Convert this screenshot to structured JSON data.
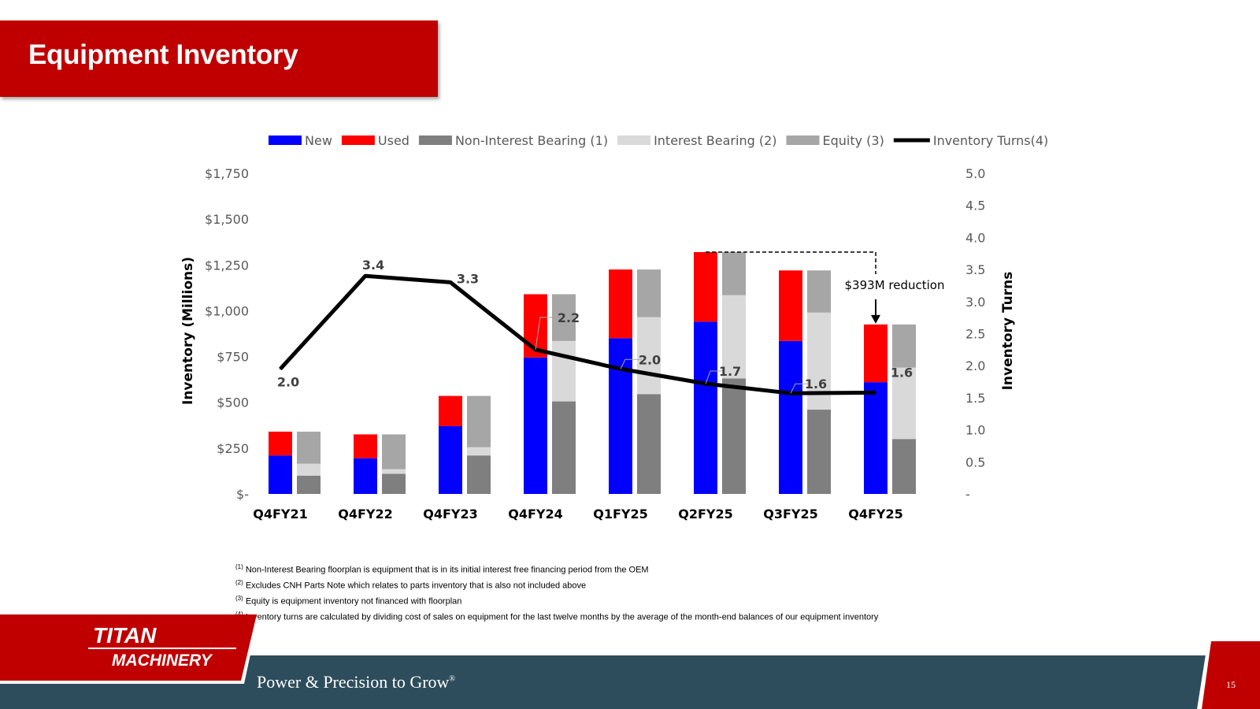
{
  "slide": {
    "title": "Equipment Inventory",
    "page_number": "15",
    "tagline": "Power & Precision to Grow",
    "tagline_mark": "®",
    "logo": {
      "line1": "TITAN",
      "line2": "MACHINERY"
    }
  },
  "footnotes": [
    {
      "mark": "(1)",
      "text": "Non-Interest Bearing floorplan is equipment that is in its initial interest free financing period from the OEM"
    },
    {
      "mark": "(2)",
      "text": "Excludes CNH Parts Note which relates to parts inventory that is also not included above"
    },
    {
      "mark": "(3)",
      "text": "Equity is equipment inventory not financed with floorplan"
    },
    {
      "mark": "(4)",
      "text": "Inventory turns are calculated by dividing cost of sales on equipment for the last twelve months by the average of the month-end balances of our equipment inventory"
    }
  ],
  "colors": {
    "title_red": "#c00000",
    "new": "#0000ff",
    "used": "#ff0000",
    "non_interest_bearing": "#7f7f7f",
    "interest_bearing": "#d9d9d9",
    "equity": "#a6a6a6",
    "turns_line": "#000000",
    "footer_band": "#2e4d5c"
  },
  "chart_data": {
    "type": "bar",
    "categories": [
      "Q4FY21",
      "Q4FY22",
      "Q4FY23",
      "Q4FY24",
      "Q1FY25",
      "Q2FY25",
      "Q3FY25",
      "Q4FY25"
    ],
    "ylabel": "Inventory (Millions)",
    "y2label": "Inventory Turns",
    "ylim": [
      0,
      1750
    ],
    "y2lim": [
      0,
      5.0
    ],
    "y_ticks": [
      "$-",
      "$250",
      "$500",
      "$750",
      "$1,000",
      "$1,250",
      "$1,500",
      "$1,750"
    ],
    "y2_ticks": [
      "-",
      "0.5",
      "1.0",
      "1.5",
      "2.0",
      "2.5",
      "3.0",
      "3.5",
      "4.0",
      "4.5",
      "5.0"
    ],
    "legend": [
      "New",
      "Used",
      "Non-Interest Bearing (1)",
      "Interest Bearing (2)",
      "Equity (3)",
      "Inventory Turns(4)"
    ],
    "legend_position": "top",
    "by_type": {
      "new": [
        210,
        195,
        370,
        745,
        850,
        940,
        835,
        610
      ],
      "used": [
        130,
        130,
        165,
        345,
        375,
        380,
        385,
        315
      ]
    },
    "by_funding": {
      "non_interest_bearing": [
        100,
        110,
        210,
        505,
        545,
        630,
        460,
        300
      ],
      "interest_bearing": [
        65,
        25,
        45,
        330,
        420,
        455,
        530,
        390
      ],
      "equity": [
        175,
        190,
        280,
        255,
        260,
        235,
        230,
        235
      ]
    },
    "turns": [
      1.95,
      3.4,
      3.3,
      2.25,
      1.95,
      1.72,
      1.57,
      1.58
    ],
    "turn_labels": [
      "2.0",
      "3.4",
      "3.3",
      "2.2",
      "2.0",
      "1.7",
      "1.6",
      "1.6"
    ],
    "annotation": "$393M reduction"
  }
}
